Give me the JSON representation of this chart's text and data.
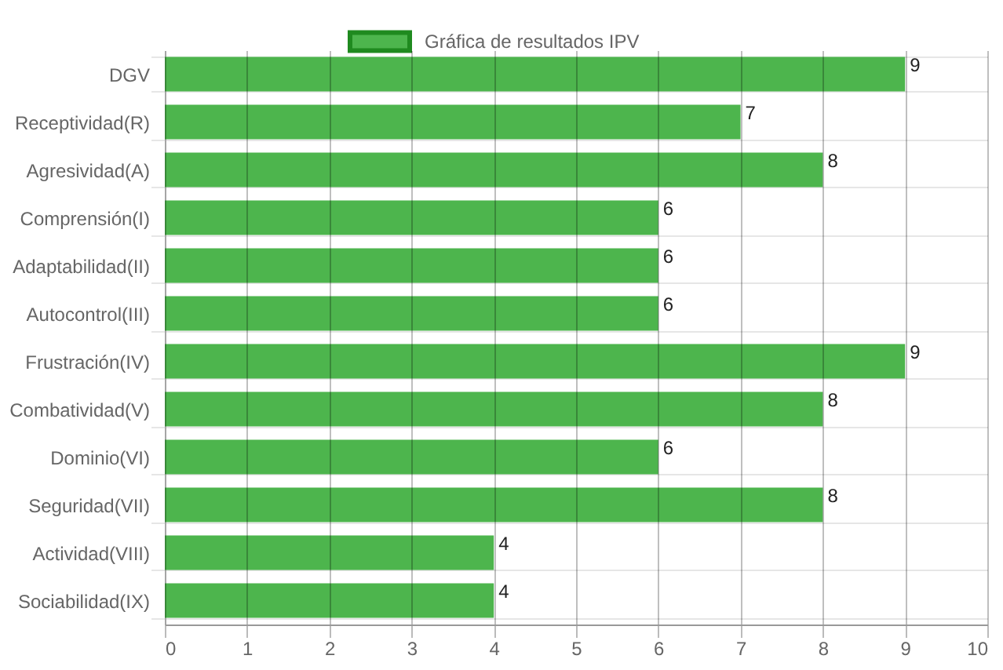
{
  "chart_data": {
    "type": "bar",
    "orientation": "horizontal",
    "categories": [
      "DGV",
      "Receptividad(R)",
      "Agresividad(A)",
      "Comprensión(I)",
      "Adaptabilidad(II)",
      "Autocontrol(III)",
      "Frustración(IV)",
      "Combatividad(V)",
      "Dominio(VI)",
      "Seguridad(VII)",
      "Actividad(VIII)",
      "Sociabilidad(IX)"
    ],
    "series": [
      {
        "name": "Gráfica de resultados IPV",
        "color": "#4db54d",
        "values": [
          9,
          7,
          8,
          6,
          6,
          6,
          9,
          8,
          6,
          8,
          4,
          4
        ]
      }
    ],
    "xlim": [
      0,
      10
    ],
    "xticks": [
      0,
      1,
      2,
      3,
      4,
      5,
      6,
      7,
      8,
      9,
      10
    ],
    "grid": true,
    "legend": "top",
    "data_labels": true
  }
}
